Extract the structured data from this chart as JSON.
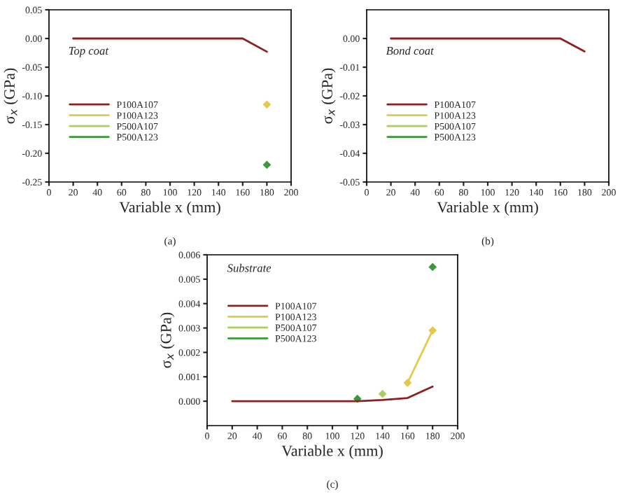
{
  "chart_data": [
    {
      "type": "line",
      "xlabel": "Variable x (mm)",
      "ylabel": "σ$_{x}$ (GPa)",
      "annotations": [
        "Top coat",
        "(a)"
      ],
      "x": [
        20,
        40,
        60,
        80,
        100,
        120,
        140,
        160,
        180
      ],
      "xlim": [
        0,
        200
      ],
      "xticks": [
        0,
        20,
        40,
        60,
        80,
        100,
        120,
        140,
        160,
        180,
        200
      ],
      "ylim": [
        -0.25,
        0.05
      ],
      "yticks": [
        {
          "value": -0.25,
          "label": "-0.25"
        },
        {
          "value": -0.2,
          "label": "-0.20"
        },
        {
          "value": -0.15,
          "label": "-0.15"
        },
        {
          "value": -0.1,
          "label": "-0.10"
        },
        {
          "value": -0.05,
          "label": "-0.05"
        },
        {
          "value": 0,
          "label": "0.00"
        },
        {
          "value": 0.05,
          "label": "0.05"
        }
      ],
      "legend": "left",
      "series": [
        {
          "name": "P100A107",
          "color": "#8b2020",
          "values": [
            0,
            0,
            0,
            0,
            0,
            0,
            0,
            0,
            -0.023
          ]
        },
        {
          "name": "P100A123",
          "color": "#e6c84a",
          "marker": "diamond",
          "values": [
            null,
            null,
            null,
            null,
            null,
            null,
            null,
            null,
            -0.115
          ]
        },
        {
          "name": "P500A107",
          "color": "#a8d060",
          "marker": "diamond",
          "values": [
            null,
            null,
            null,
            null,
            null,
            null,
            null,
            null,
            null
          ]
        },
        {
          "name": "P500A123",
          "color": "#3a9a3a",
          "marker": "diamond",
          "values": [
            null,
            null,
            null,
            null,
            null,
            null,
            null,
            null,
            -0.22
          ]
        }
      ]
    },
    {
      "type": "line",
      "xlabel": "Variable x (mm)",
      "ylabel": "σ$_{x}$ (GPa)",
      "annotations": [
        "Bond coat",
        "(b)"
      ],
      "x": [
        20,
        40,
        60,
        80,
        100,
        120,
        140,
        160,
        180
      ],
      "xlim": [
        0,
        200
      ],
      "xticks": [
        0,
        20,
        40,
        60,
        80,
        100,
        120,
        140,
        160,
        180,
        200
      ],
      "ylim": [
        -0.05,
        0.01
      ],
      "yticks": [
        {
          "value": -0.05,
          "label": "-0.05"
        },
        {
          "value": -0.04,
          "label": "-0.04"
        },
        {
          "value": -0.03,
          "label": "-0.03"
        },
        {
          "value": -0.02,
          "label": "-0.02"
        },
        {
          "value": -0.01,
          "label": "-0.01"
        },
        {
          "value": 0,
          "label": "0.00"
        }
      ],
      "legend": "left",
      "series": [
        {
          "name": "P100A107",
          "color": "#8b2020",
          "values": [
            0,
            0,
            0,
            0,
            0,
            0,
            0,
            0,
            -0.0045
          ]
        },
        {
          "name": "P100A123",
          "color": "#e6c84a",
          "marker": "diamond",
          "values": [
            null,
            null,
            null,
            null,
            null,
            null,
            null,
            null,
            null
          ]
        },
        {
          "name": "P500A107",
          "color": "#a8d060",
          "marker": "diamond",
          "values": [
            null,
            null,
            null,
            null,
            null,
            null,
            null,
            null,
            null
          ]
        },
        {
          "name": "P500A123",
          "color": "#3a9a3a",
          "marker": "diamond",
          "values": [
            null,
            null,
            null,
            null,
            null,
            null,
            null,
            null,
            null
          ]
        }
      ]
    },
    {
      "type": "line",
      "xlabel": "Variable x (mm)",
      "ylabel": "σ$_{x}$ (GPa)",
      "annotations": [
        "Substrate",
        "(c)"
      ],
      "x": [
        20,
        40,
        60,
        80,
        100,
        120,
        140,
        160,
        180
      ],
      "xlim": [
        0,
        200
      ],
      "xticks": [
        0,
        20,
        40,
        60,
        80,
        100,
        120,
        140,
        160,
        180,
        200
      ],
      "ylim": [
        -0.001,
        0.006
      ],
      "yticks": [
        {
          "value": 0,
          "label": "0.000"
        },
        {
          "value": 0.001,
          "label": "0.001"
        },
        {
          "value": 0.002,
          "label": "0.002"
        },
        {
          "value": 0.003,
          "label": "0.003"
        },
        {
          "value": 0.004,
          "label": "0.004"
        },
        {
          "value": 0.005,
          "label": "0.005"
        },
        {
          "value": 0.006,
          "label": "0.006"
        }
      ],
      "legend": "left",
      "series": [
        {
          "name": "P100A107",
          "color": "#8b2020",
          "values": [
            0,
            0,
            0,
            0,
            0,
            0,
            5e-05,
            0.00013,
            0.0006
          ]
        },
        {
          "name": "P100A123",
          "color": "#e6c84a",
          "marker": "diamond",
          "values": [
            null,
            null,
            null,
            null,
            null,
            null,
            null,
            0.00075,
            0.0029
          ]
        },
        {
          "name": "P500A107",
          "color": "#a8d060",
          "marker": "diamond",
          "values": [
            null,
            null,
            null,
            null,
            null,
            null,
            0.0003,
            null,
            null
          ]
        },
        {
          "name": "P500A123",
          "color": "#3a9a3a",
          "marker": "diamond",
          "values": [
            null,
            null,
            null,
            null,
            null,
            0.0001,
            null,
            null,
            0.0055
          ]
        }
      ]
    }
  ]
}
